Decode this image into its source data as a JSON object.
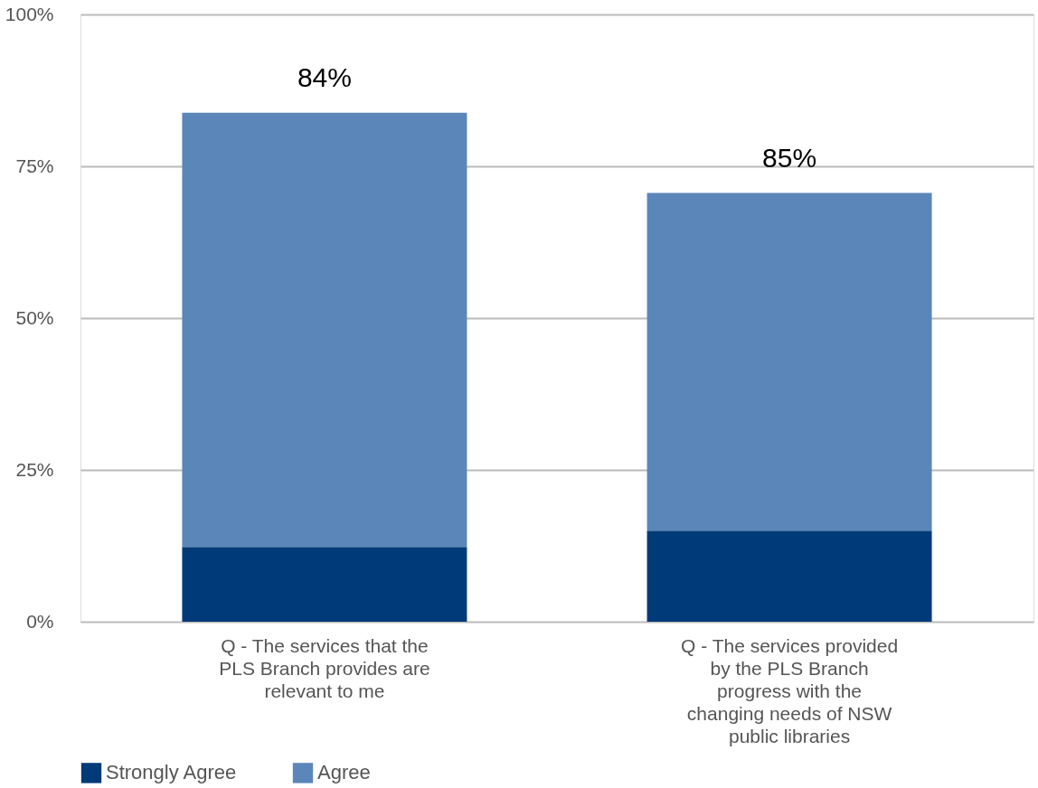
{
  "chart_data": {
    "type": "bar",
    "stacked": true,
    "categories": [
      "Q - The services that the\nPLS Branch provides are\nrelevant to me",
      "Q - The services provided\nby the PLS Branch\nprogress with the\nchanging needs of NSW\npublic libraries"
    ],
    "series": [
      {
        "name": "Strongly Agree",
        "color": "#003a78",
        "values": [
          12.3,
          15
        ]
      },
      {
        "name": "Agree",
        "color": "#5b86b9",
        "values": [
          71.5,
          55.6
        ]
      }
    ],
    "annotations": [
      {
        "text": "84%",
        "x": "Q - The services that the\nPLS Branch provides are\nrelevant to me",
        "y": 83.8
      },
      {
        "text": "85%",
        "x": "Q - The services provided\nby the PLS Branch\nprogress with the\nchanging needs of NSW\npublic libraries",
        "y": 70.6
      }
    ],
    "ylim": [
      0,
      100
    ],
    "yticks": [
      {
        "value": 0,
        "label": "0%"
      },
      {
        "value": 25,
        "label": "25%"
      },
      {
        "value": 50,
        "label": "50%"
      },
      {
        "value": 75,
        "label": "75%"
      },
      {
        "value": 100,
        "label": "100%"
      }
    ],
    "grid": "y",
    "legend": "bottom"
  }
}
